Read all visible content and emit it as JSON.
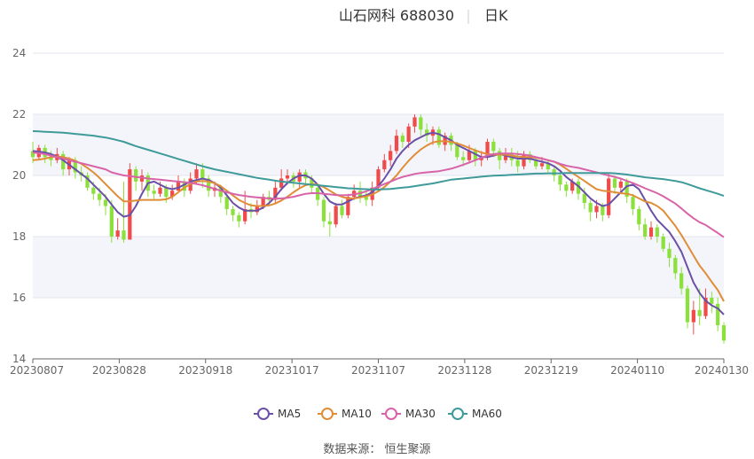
{
  "chart_data": {
    "type": "candlestick",
    "title_name": "山石网科 688030",
    "title_period": "日K",
    "source": "数据来源： 恒生聚源",
    "ylim": [
      14,
      24
    ],
    "y_ticks": [
      "24",
      "22",
      "20",
      "18",
      "16",
      "14"
    ],
    "x_tick_labels": [
      "20230807",
      "20230828",
      "20230918",
      "20231017",
      "20231107",
      "20231128",
      "20231219",
      "20240110",
      "20240130"
    ],
    "colors": {
      "up": "#ef4b4b",
      "down": "#8be03c",
      "MA5": "#6a50a7",
      "MA10": "#e08d37",
      "MA30": "#d863a8",
      "MA60": "#3f9a9a"
    },
    "candles": [
      [
        20.8,
        20.6,
        21.1,
        20.4
      ],
      [
        20.6,
        20.9,
        21.0,
        20.5
      ],
      [
        20.9,
        20.6,
        21.0,
        20.4
      ],
      [
        20.6,
        20.5,
        20.8,
        20.3
      ],
      [
        20.5,
        20.7,
        20.9,
        20.4
      ],
      [
        20.7,
        20.2,
        20.8,
        20.0
      ],
      [
        20.2,
        20.5,
        20.6,
        20.0
      ],
      [
        20.5,
        20.1,
        20.6,
        19.9
      ],
      [
        20.1,
        20.0,
        20.3,
        19.8
      ],
      [
        20.0,
        19.6,
        20.1,
        19.5
      ],
      [
        19.6,
        19.4,
        19.8,
        19.2
      ],
      [
        19.4,
        19.2,
        19.6,
        19.0
      ],
      [
        19.2,
        19.0,
        19.4,
        18.7
      ],
      [
        19.0,
        18.0,
        19.2,
        17.8
      ],
      [
        18.0,
        18.2,
        18.6,
        17.9
      ],
      [
        18.2,
        17.9,
        19.8,
        17.8
      ],
      [
        17.9,
        20.2,
        20.4,
        17.9
      ],
      [
        20.2,
        19.8,
        20.3,
        19.5
      ],
      [
        19.8,
        20.0,
        20.2,
        19.5
      ],
      [
        20.0,
        19.5,
        20.1,
        19.3
      ],
      [
        19.5,
        19.4,
        19.7,
        19.2
      ],
      [
        19.4,
        19.6,
        19.8,
        19.3
      ],
      [
        19.6,
        19.3,
        19.7,
        19.1
      ],
      [
        19.3,
        19.5,
        19.7,
        19.2
      ],
      [
        19.5,
        19.8,
        20.0,
        19.5
      ],
      [
        19.8,
        19.5,
        19.9,
        19.3
      ],
      [
        19.5,
        19.9,
        20.1,
        19.4
      ],
      [
        19.9,
        20.2,
        20.4,
        19.7
      ],
      [
        20.2,
        19.9,
        20.4,
        19.6
      ],
      [
        19.9,
        19.5,
        20.0,
        19.3
      ],
      [
        19.5,
        19.6,
        19.8,
        19.3
      ],
      [
        19.6,
        19.3,
        19.7,
        19.1
      ],
      [
        19.3,
        18.9,
        19.4,
        18.7
      ],
      [
        18.9,
        18.7,
        19.0,
        18.5
      ],
      [
        18.7,
        18.5,
        18.8,
        18.3
      ],
      [
        18.5,
        18.9,
        19.5,
        18.4
      ],
      [
        18.9,
        18.8,
        19.1,
        18.6
      ],
      [
        18.8,
        19.0,
        19.2,
        18.7
      ],
      [
        19.0,
        19.3,
        19.4,
        18.9
      ],
      [
        19.3,
        19.2,
        19.5,
        19.0
      ],
      [
        19.2,
        19.6,
        19.8,
        19.1
      ],
      [
        19.6,
        19.9,
        20.2,
        19.5
      ],
      [
        19.9,
        20.0,
        20.2,
        19.7
      ],
      [
        20.0,
        19.8,
        20.1,
        19.6
      ],
      [
        19.8,
        20.1,
        20.2,
        19.6
      ],
      [
        20.1,
        19.9,
        20.2,
        19.7
      ],
      [
        19.9,
        19.6,
        20.0,
        19.4
      ],
      [
        19.6,
        19.2,
        19.7,
        19.0
      ],
      [
        19.2,
        18.5,
        19.3,
        18.3
      ],
      [
        18.5,
        18.4,
        18.8,
        18.0
      ],
      [
        18.4,
        19.0,
        19.1,
        18.3
      ],
      [
        19.0,
        18.7,
        19.2,
        18.6
      ],
      [
        18.7,
        19.3,
        19.4,
        18.6
      ],
      [
        19.3,
        19.5,
        19.7,
        19.2
      ],
      [
        19.5,
        19.3,
        19.8,
        19.1
      ],
      [
        19.3,
        19.2,
        19.5,
        19.0
      ],
      [
        19.2,
        19.6,
        19.8,
        19.0
      ],
      [
        19.6,
        20.2,
        20.3,
        19.5
      ],
      [
        20.2,
        20.5,
        20.7,
        20.1
      ],
      [
        20.5,
        20.8,
        21.0,
        20.3
      ],
      [
        20.8,
        21.3,
        21.5,
        20.7
      ],
      [
        21.3,
        21.1,
        21.4,
        20.9
      ],
      [
        21.1,
        21.6,
        21.7,
        20.9
      ],
      [
        21.6,
        21.9,
        22.0,
        21.4
      ],
      [
        21.9,
        21.5,
        22.0,
        21.3
      ],
      [
        21.5,
        21.3,
        21.7,
        21.1
      ],
      [
        21.3,
        21.5,
        21.6,
        21.0
      ],
      [
        21.5,
        21.0,
        21.6,
        20.9
      ],
      [
        21.0,
        21.3,
        21.4,
        20.8
      ],
      [
        21.3,
        21.0,
        21.4,
        20.8
      ],
      [
        21.0,
        20.6,
        21.1,
        20.5
      ],
      [
        20.6,
        20.5,
        20.8,
        20.3
      ],
      [
        20.5,
        20.8,
        21.0,
        20.4
      ],
      [
        20.8,
        20.5,
        20.9,
        20.3
      ],
      [
        20.5,
        20.6,
        20.8,
        20.3
      ],
      [
        20.6,
        21.1,
        21.2,
        20.5
      ],
      [
        21.1,
        20.8,
        21.2,
        20.6
      ],
      [
        20.8,
        20.5,
        20.9,
        20.2
      ],
      [
        20.5,
        20.7,
        20.9,
        20.4
      ],
      [
        20.7,
        20.5,
        20.9,
        20.3
      ],
      [
        20.5,
        20.3,
        20.8,
        20.1
      ],
      [
        20.3,
        20.7,
        20.8,
        20.2
      ],
      [
        20.7,
        20.5,
        20.8,
        20.4
      ],
      [
        20.5,
        20.3,
        20.6,
        20.2
      ],
      [
        20.3,
        20.4,
        20.6,
        20.2
      ],
      [
        20.4,
        20.2,
        20.5,
        20.1
      ],
      [
        20.2,
        20.0,
        20.3,
        19.8
      ],
      [
        20.0,
        19.7,
        20.1,
        19.5
      ],
      [
        19.7,
        19.5,
        19.8,
        19.3
      ],
      [
        19.5,
        19.8,
        19.9,
        19.4
      ],
      [
        19.8,
        19.4,
        19.9,
        19.2
      ],
      [
        19.4,
        19.1,
        19.6,
        18.9
      ],
      [
        19.1,
        18.8,
        19.2,
        18.5
      ],
      [
        18.8,
        19.0,
        19.2,
        18.6
      ],
      [
        19.0,
        18.7,
        19.1,
        18.5
      ],
      [
        18.7,
        19.9,
        20.1,
        18.6
      ],
      [
        19.9,
        19.6,
        20.0,
        19.4
      ],
      [
        19.6,
        19.8,
        19.9,
        19.4
      ],
      [
        19.8,
        19.3,
        19.9,
        19.1
      ],
      [
        19.3,
        18.9,
        19.4,
        18.7
      ],
      [
        18.9,
        18.4,
        19.0,
        18.2
      ],
      [
        18.4,
        18.0,
        18.6,
        17.9
      ],
      [
        18.0,
        18.3,
        18.5,
        17.9
      ],
      [
        18.3,
        18.0,
        18.4,
        17.8
      ],
      [
        18.0,
        17.6,
        18.1,
        17.5
      ],
      [
        17.6,
        17.3,
        17.8,
        17.0
      ],
      [
        17.3,
        16.8,
        17.4,
        16.6
      ],
      [
        16.8,
        16.3,
        17.0,
        16.1
      ],
      [
        16.3,
        15.2,
        16.4,
        15.0
      ],
      [
        15.2,
        15.6,
        15.9,
        14.8
      ],
      [
        15.6,
        15.4,
        16.3,
        15.1
      ],
      [
        15.4,
        16.0,
        16.3,
        15.3
      ],
      [
        16.0,
        15.8,
        16.2,
        15.5
      ],
      [
        15.8,
        15.1,
        16.0,
        14.9
      ],
      [
        15.1,
        14.6,
        15.2,
        14.5
      ]
    ],
    "ma": {
      "MA5": [
        20.8,
        20.78,
        20.75,
        20.7,
        20.62,
        20.5,
        20.35,
        20.2,
        20.05,
        19.9,
        19.7,
        19.5,
        19.3,
        19.05,
        18.8,
        18.65,
        18.7,
        19.0,
        19.4,
        19.75,
        19.8,
        19.7,
        19.6,
        19.55,
        19.6,
        19.7,
        19.8,
        19.85,
        19.9,
        19.85,
        19.75,
        19.6,
        19.35,
        19.1,
        18.95,
        18.85,
        18.85,
        18.85,
        18.95,
        19.1,
        19.3,
        19.55,
        19.75,
        19.9,
        20.0,
        20.0,
        19.9,
        19.7,
        19.4,
        19.15,
        19.05,
        19.05,
        19.15,
        19.25,
        19.3,
        19.35,
        19.45,
        19.65,
        19.9,
        20.2,
        20.55,
        20.8,
        21.0,
        21.15,
        21.25,
        21.35,
        21.4,
        21.35,
        21.25,
        21.15,
        21.0,
        20.9,
        20.8,
        20.7,
        20.6,
        20.6,
        20.65,
        20.7,
        20.65,
        20.6,
        20.55,
        20.55,
        20.55,
        20.5,
        20.45,
        20.4,
        20.3,
        20.15,
        19.95,
        19.8,
        19.65,
        19.45,
        19.25,
        19.1,
        19.0,
        19.05,
        19.25,
        19.45,
        19.65,
        19.7,
        19.55,
        19.2,
        18.85,
        18.55,
        18.35,
        18.15,
        17.85,
        17.5,
        17.0,
        16.5,
        16.15,
        15.9,
        15.75,
        15.65,
        15.45
      ],
      "MA10": [
        20.5,
        20.52,
        20.55,
        20.6,
        20.62,
        20.6,
        20.55,
        20.48,
        20.38,
        20.25,
        20.1,
        19.92,
        19.72,
        19.52,
        19.32,
        19.15,
        19.15,
        19.18,
        19.2,
        19.2,
        19.2,
        19.2,
        19.22,
        19.3,
        19.45,
        19.6,
        19.72,
        19.8,
        19.82,
        19.8,
        19.75,
        19.65,
        19.5,
        19.35,
        19.2,
        19.1,
        19.02,
        19.0,
        19.0,
        19.02,
        19.08,
        19.18,
        19.3,
        19.45,
        19.58,
        19.68,
        19.72,
        19.7,
        19.62,
        19.5,
        19.38,
        19.3,
        19.25,
        19.25,
        19.28,
        19.32,
        19.38,
        19.48,
        19.62,
        19.8,
        20.0,
        20.25,
        20.48,
        20.68,
        20.85,
        20.98,
        21.08,
        21.12,
        21.12,
        21.1,
        21.05,
        20.98,
        20.9,
        20.82,
        20.75,
        20.7,
        20.68,
        20.68,
        20.68,
        20.65,
        20.62,
        20.6,
        20.6,
        20.58,
        20.55,
        20.5,
        20.45,
        20.35,
        20.22,
        20.08,
        19.95,
        19.82,
        19.68,
        19.55,
        19.5,
        19.48,
        19.45,
        19.42,
        19.4,
        19.35,
        19.25,
        19.15,
        19.1,
        19.0,
        18.85,
        18.6,
        18.35,
        18.05,
        17.72,
        17.38,
        17.05,
        16.8,
        16.52,
        16.25,
        15.88
      ],
      "MA30": [
        20.75,
        20.73,
        20.7,
        20.65,
        20.6,
        20.55,
        20.5,
        20.45,
        20.4,
        20.35,
        20.3,
        20.25,
        20.2,
        20.1,
        20.05,
        20.0,
        19.98,
        19.95,
        19.93,
        19.9,
        19.88,
        19.86,
        19.84,
        19.82,
        19.8,
        19.78,
        19.76,
        19.72,
        19.68,
        19.62,
        19.56,
        19.5,
        19.45,
        19.4,
        19.36,
        19.33,
        19.3,
        19.28,
        19.26,
        19.25,
        19.24,
        19.25,
        19.27,
        19.3,
        19.35,
        19.4,
        19.42,
        19.42,
        19.4,
        19.38,
        19.36,
        19.35,
        19.36,
        19.38,
        19.42,
        19.48,
        19.56,
        19.64,
        19.72,
        19.8,
        19.88,
        19.95,
        20.0,
        20.05,
        20.08,
        20.1,
        20.12,
        20.14,
        20.18,
        20.22,
        20.28,
        20.35,
        20.42,
        20.5,
        20.58,
        20.65,
        20.7,
        20.72,
        20.72,
        20.72,
        20.7,
        20.68,
        20.65,
        20.6,
        20.55,
        20.5,
        20.45,
        20.38,
        20.32,
        20.28,
        20.25,
        20.2,
        20.15,
        20.1,
        20.05,
        20.0,
        19.95,
        19.9,
        19.82,
        19.75,
        19.67,
        19.58,
        19.5,
        19.42,
        19.32,
        19.2,
        19.08,
        18.92,
        18.75,
        18.6,
        18.47,
        18.38,
        18.25,
        18.12,
        17.98
      ],
      "MA60": [
        21.45,
        21.44,
        21.43,
        21.42,
        21.41,
        21.4,
        21.38,
        21.36,
        21.34,
        21.32,
        21.3,
        21.27,
        21.24,
        21.2,
        21.15,
        21.1,
        21.03,
        20.96,
        20.9,
        20.84,
        20.78,
        20.72,
        20.66,
        20.6,
        20.54,
        20.48,
        20.42,
        20.36,
        20.3,
        20.25,
        20.2,
        20.16,
        20.12,
        20.08,
        20.04,
        20.0,
        19.96,
        19.92,
        19.89,
        19.86,
        19.83,
        19.8,
        19.78,
        19.76,
        19.74,
        19.72,
        19.7,
        19.68,
        19.66,
        19.64,
        19.62,
        19.6,
        19.58,
        19.57,
        19.56,
        19.55,
        19.54,
        19.54,
        19.55,
        19.56,
        19.58,
        19.6,
        19.62,
        19.65,
        19.68,
        19.71,
        19.74,
        19.78,
        19.82,
        19.86,
        19.88,
        19.9,
        19.92,
        19.94,
        19.96,
        19.98,
        19.99,
        20.0,
        20.01,
        20.02,
        20.03,
        20.04,
        20.05,
        20.06,
        20.06,
        20.07,
        20.07,
        20.07,
        20.08,
        20.08,
        20.08,
        20.08,
        20.08,
        20.08,
        20.08,
        20.08,
        20.07,
        20.05,
        20.03,
        20.0,
        19.97,
        19.94,
        19.92,
        19.9,
        19.88,
        19.85,
        19.82,
        19.78,
        19.72,
        19.65,
        19.58,
        19.52,
        19.46,
        19.4,
        19.33
      ]
    },
    "legend": [
      "MA5",
      "MA10",
      "MA30",
      "MA60"
    ]
  }
}
